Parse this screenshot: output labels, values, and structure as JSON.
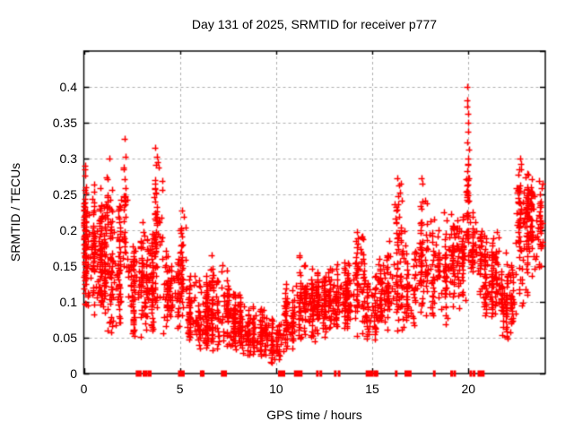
{
  "chart_data": {
    "type": "scatter",
    "title": "Day 131 of 2025, SRMTID for receiver p777",
    "xlabel": "GPS time / hours",
    "ylabel": "SRMTID / TECUs",
    "xlim": [
      0,
      24
    ],
    "ylim": [
      0,
      0.45
    ],
    "xticks": [
      {
        "v": 0,
        "label": "0"
      },
      {
        "v": 5,
        "label": "5"
      },
      {
        "v": 10,
        "label": "10"
      },
      {
        "v": 15,
        "label": "15"
      },
      {
        "v": 20,
        "label": "20"
      }
    ],
    "yticks": [
      {
        "v": 0,
        "label": "0"
      },
      {
        "v": 0.05,
        "label": "0.05"
      },
      {
        "v": 0.1,
        "label": "0.1"
      },
      {
        "v": 0.15,
        "label": "0.15"
      },
      {
        "v": 0.2,
        "label": "0.2"
      },
      {
        "v": 0.25,
        "label": "0.25"
      },
      {
        "v": 0.3,
        "label": "0.3"
      },
      {
        "v": 0.35,
        "label": "0.35"
      },
      {
        "v": 0.4,
        "label": "0.4"
      }
    ],
    "grid": true,
    "legend": "none",
    "marker": {
      "shape": "plus",
      "color": "#ff0000",
      "size": 7
    },
    "colors": {
      "background": "#ffffff",
      "frame": "#000000",
      "grid": "#b0b0b0",
      "text": "#000000",
      "series": "#ff0000"
    },
    "seed": 13107,
    "density_segments": [
      {
        "h0": 0.0,
        "h1": 0.15,
        "n": 40,
        "ymin": 0.115,
        "ymax": 0.29,
        "bias": 1.0
      },
      {
        "h0": 0.0,
        "h1": 1.0,
        "n": 170,
        "ymin": 0.08,
        "ymax": 0.27,
        "bias": 1.15
      },
      {
        "h0": 1.0,
        "h1": 2.0,
        "n": 150,
        "ymin": 0.05,
        "ymax": 0.26,
        "bias": 1.2
      },
      {
        "h0": 1.15,
        "h1": 1.45,
        "n": 12,
        "ymin": 0.2,
        "ymax": 0.3,
        "bias": 0.9
      },
      {
        "h0": 2.0,
        "h1": 2.3,
        "n": 30,
        "ymin": 0.1,
        "ymax": 0.31,
        "bias": 1.0
      },
      {
        "h0": 2.3,
        "h1": 3.1,
        "n": 100,
        "ymin": 0.05,
        "ymax": 0.23,
        "bias": 1.25
      },
      {
        "h0": 3.1,
        "h1": 3.6,
        "n": 80,
        "ymin": 0.05,
        "ymax": 0.21,
        "bias": 1.2
      },
      {
        "h0": 3.6,
        "h1": 4.1,
        "n": 65,
        "ymin": 0.08,
        "ymax": 0.3,
        "bias": 1.1
      },
      {
        "h0": 4.1,
        "h1": 4.95,
        "n": 85,
        "ymin": 0.05,
        "ymax": 0.19,
        "bias": 1.25
      },
      {
        "h0": 4.95,
        "h1": 5.35,
        "n": 45,
        "ymin": 0.07,
        "ymax": 0.25,
        "bias": 1.1
      },
      {
        "h0": 5.35,
        "h1": 6.5,
        "n": 140,
        "ymin": 0.03,
        "ymax": 0.14,
        "bias": 1.2
      },
      {
        "h0": 6.5,
        "h1": 7.55,
        "n": 120,
        "ymin": 0.03,
        "ymax": 0.17,
        "bias": 1.3
      },
      {
        "h0": 7.55,
        "h1": 8.35,
        "n": 100,
        "ymin": 0.025,
        "ymax": 0.12,
        "bias": 1.2
      },
      {
        "h0": 8.35,
        "h1": 9.6,
        "n": 120,
        "ymin": 0.02,
        "ymax": 0.1,
        "bias": 1.15
      },
      {
        "h0": 9.6,
        "h1": 10.4,
        "n": 55,
        "ymin": 0.012,
        "ymax": 0.085,
        "bias": 1.1
      },
      {
        "h0": 10.4,
        "h1": 11.05,
        "n": 70,
        "ymin": 0.03,
        "ymax": 0.13,
        "bias": 1.1
      },
      {
        "h0": 11.05,
        "h1": 12.0,
        "n": 110,
        "ymin": 0.04,
        "ymax": 0.17,
        "bias": 1.2
      },
      {
        "h0": 12.0,
        "h1": 13.0,
        "n": 120,
        "ymin": 0.05,
        "ymax": 0.16,
        "bias": 1.15
      },
      {
        "h0": 13.0,
        "h1": 14.0,
        "n": 120,
        "ymin": 0.055,
        "ymax": 0.165,
        "bias": 1.1
      },
      {
        "h0": 14.0,
        "h1": 14.65,
        "n": 70,
        "ymin": 0.05,
        "ymax": 0.21,
        "bias": 1.1
      },
      {
        "h0": 14.65,
        "h1": 15.25,
        "n": 60,
        "ymin": 0.04,
        "ymax": 0.14,
        "bias": 1.15
      },
      {
        "h0": 15.25,
        "h1": 16.05,
        "n": 90,
        "ymin": 0.05,
        "ymax": 0.19,
        "bias": 1.15
      },
      {
        "h0": 16.05,
        "h1": 16.7,
        "n": 75,
        "ymin": 0.05,
        "ymax": 0.27,
        "bias": 1.25
      },
      {
        "h0": 16.7,
        "h1": 17.35,
        "n": 60,
        "ymin": 0.05,
        "ymax": 0.19,
        "bias": 1.2
      },
      {
        "h0": 17.35,
        "h1": 18.05,
        "n": 70,
        "ymin": 0.07,
        "ymax": 0.27,
        "bias": 1.2
      },
      {
        "h0": 18.05,
        "h1": 19.0,
        "n": 90,
        "ymin": 0.06,
        "ymax": 0.23,
        "bias": 1.25
      },
      {
        "h0": 19.0,
        "h1": 19.85,
        "n": 95,
        "ymin": 0.08,
        "ymax": 0.245,
        "bias": 1.1
      },
      {
        "h0": 19.85,
        "h1": 20.15,
        "n": 30,
        "ymin": 0.12,
        "ymax": 0.31,
        "bias": 1.0
      },
      {
        "h0": 20.15,
        "h1": 20.7,
        "n": 60,
        "ymin": 0.1,
        "ymax": 0.235,
        "bias": 1.1
      },
      {
        "h0": 20.7,
        "h1": 21.6,
        "n": 110,
        "ymin": 0.07,
        "ymax": 0.2,
        "bias": 1.15
      },
      {
        "h0": 21.6,
        "h1": 22.45,
        "n": 95,
        "ymin": 0.04,
        "ymax": 0.175,
        "bias": 1.15
      },
      {
        "h0": 22.45,
        "h1": 23.15,
        "n": 110,
        "ymin": 0.07,
        "ymax": 0.3,
        "bias": 0.75
      },
      {
        "h0": 23.15,
        "h1": 23.9,
        "n": 95,
        "ymin": 0.1,
        "ymax": 0.29,
        "bias": 0.7
      }
    ],
    "outliers": [
      [
        0.05,
        0.29
      ],
      [
        0.08,
        0.285
      ],
      [
        1.32,
        0.3
      ],
      [
        2.12,
        0.327
      ],
      [
        2.16,
        0.302
      ],
      [
        3.72,
        0.315
      ],
      [
        3.78,
        0.302
      ],
      [
        3.84,
        0.295
      ],
      [
        3.9,
        0.288
      ],
      [
        16.32,
        0.272
      ],
      [
        16.38,
        0.262
      ],
      [
        16.45,
        0.252
      ],
      [
        17.55,
        0.272
      ],
      [
        17.6,
        0.265
      ],
      [
        19.93,
        0.4
      ],
      [
        19.96,
        0.381
      ],
      [
        19.94,
        0.372
      ],
      [
        19.99,
        0.363
      ],
      [
        19.97,
        0.35
      ],
      [
        20.0,
        0.337
      ],
      [
        19.95,
        0.322
      ],
      [
        20.02,
        0.312
      ],
      [
        19.98,
        0.3
      ],
      [
        20.01,
        0.291
      ],
      [
        19.92,
        0.282
      ],
      [
        20.03,
        0.272
      ],
      [
        19.96,
        0.262
      ],
      [
        20.0,
        0.252
      ],
      [
        19.94,
        0.243
      ],
      [
        22.68,
        0.3
      ],
      [
        22.72,
        0.292
      ],
      [
        22.76,
        0.285
      ]
    ],
    "baseline_marks": [
      [
        2.72,
        2.98
      ],
      [
        3.08,
        3.28
      ],
      [
        3.33,
        3.5
      ],
      [
        4.92,
        5.22
      ],
      [
        6.06,
        6.1
      ],
      [
        6.16,
        6.2
      ],
      [
        7.15,
        7.42
      ],
      [
        10.12,
        10.45
      ],
      [
        10.95,
        11.35
      ],
      [
        12.1,
        12.14
      ],
      [
        12.28,
        12.32
      ],
      [
        13.03,
        13.07
      ],
      [
        13.23,
        13.27
      ],
      [
        14.68,
        15.05
      ],
      [
        15.1,
        15.14
      ],
      [
        15.2,
        15.24
      ],
      [
        16.2,
        16.24
      ],
      [
        16.7,
        17.02
      ],
      [
        18.18,
        18.22
      ],
      [
        19.08,
        19.12
      ],
      [
        19.24,
        19.28
      ],
      [
        20.08,
        20.12
      ],
      [
        20.25,
        20.29
      ],
      [
        20.5,
        20.82
      ]
    ]
  }
}
